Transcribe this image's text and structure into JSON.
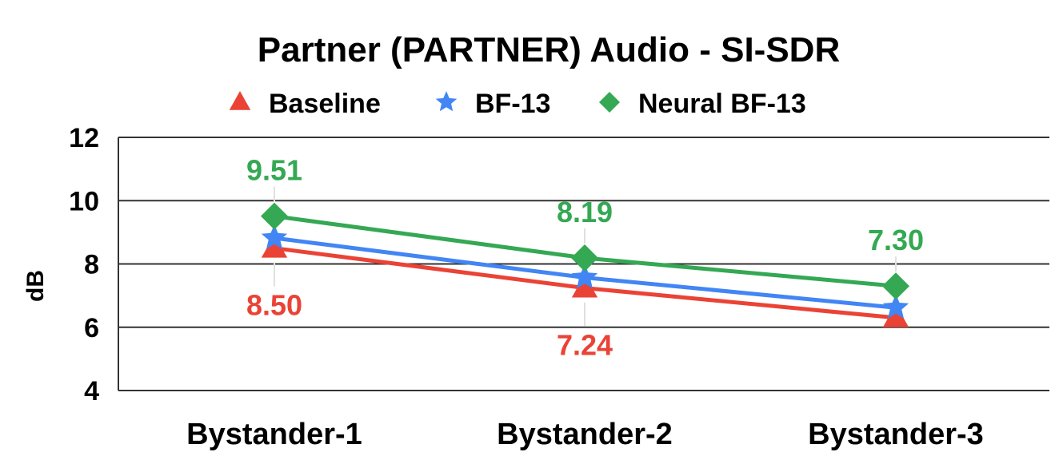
{
  "chart_data": {
    "type": "line",
    "title": "Partner (PARTNER) Audio - SI-SDR",
    "xlabel": "",
    "ylabel": "dB",
    "ylim": [
      4,
      12
    ],
    "yticks": [
      4,
      6,
      8,
      10,
      12
    ],
    "grid": true,
    "legend_position": "top",
    "categories": [
      "Bystander-1",
      "Bystander-2",
      "Bystander-3"
    ],
    "series": [
      {
        "name": "Baseline",
        "color": "#ea4335",
        "marker": "triangle",
        "values": [
          8.5,
          7.24,
          6.3
        ],
        "labels": [
          "8.50",
          "7.24",
          null
        ]
      },
      {
        "name": "BF-13",
        "color": "#4285f4",
        "marker": "star",
        "values": [
          8.82,
          7.57,
          6.62
        ],
        "labels": [
          null,
          null,
          null
        ]
      },
      {
        "name": "Neural BF-13",
        "color": "#34a853",
        "marker": "diamond",
        "values": [
          9.51,
          8.19,
          7.3
        ],
        "labels": [
          "9.51",
          "8.19",
          "7.30"
        ]
      }
    ]
  }
}
